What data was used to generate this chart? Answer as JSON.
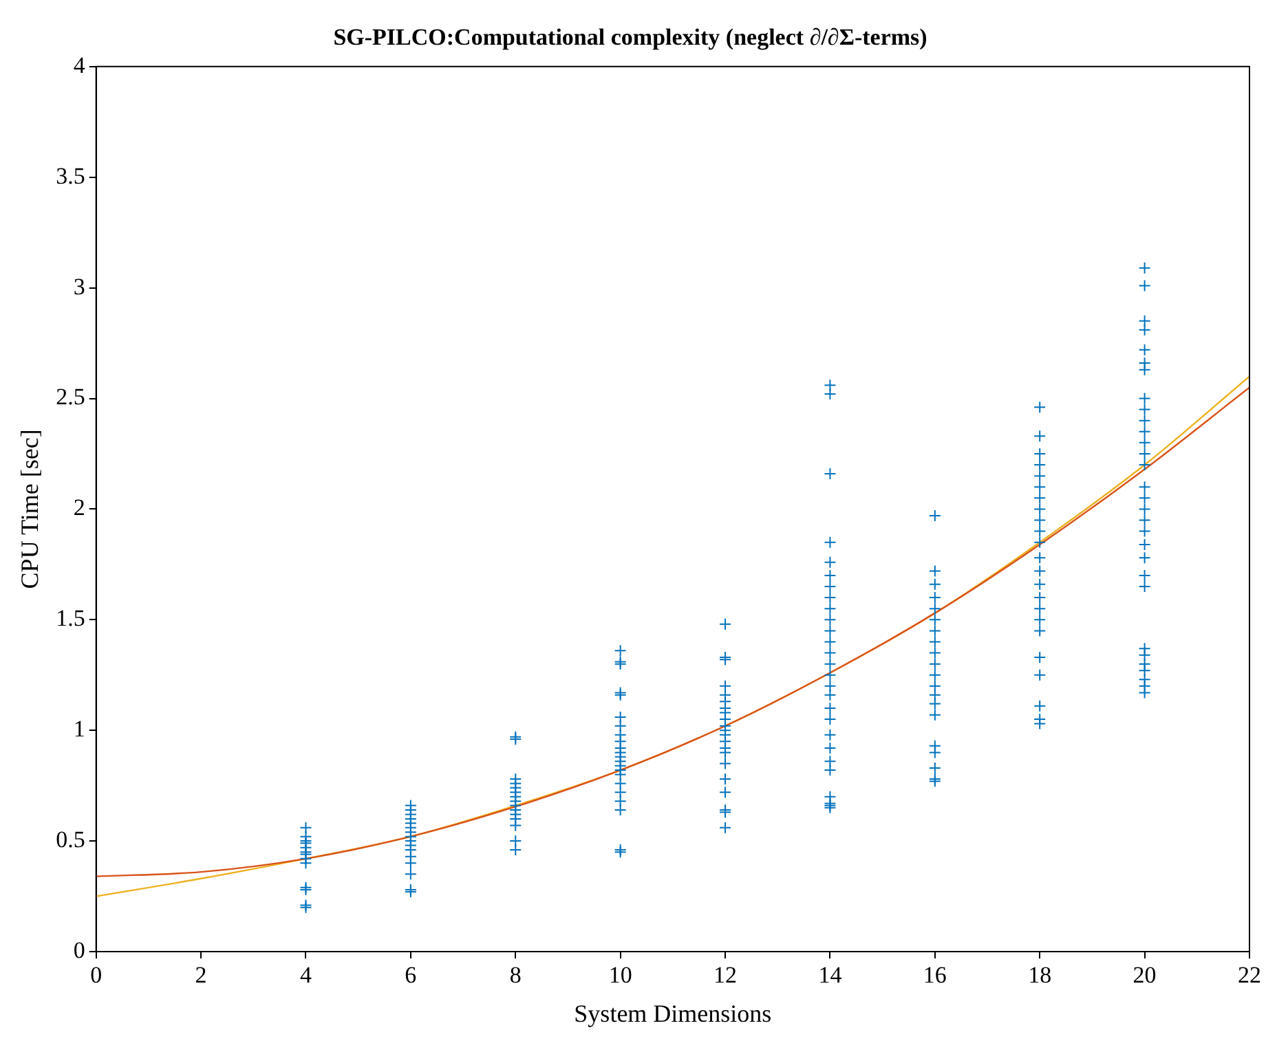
{
  "chart_data": {
    "type": "scatter",
    "title": "SG-PILCO:Computational complexity (neglect ∂/∂Σ-terms)",
    "xlabel": "System Dimensions",
    "ylabel": "CPU Time [sec]",
    "xlim": [
      0,
      22
    ],
    "xticks": [
      0,
      2,
      4,
      6,
      8,
      10,
      12,
      14,
      16,
      18,
      20,
      22
    ],
    "ylim": [
      0,
      4
    ],
    "yticks": [
      0,
      0.5,
      1,
      1.5,
      2,
      2.5,
      3,
      3.5,
      4
    ],
    "grid": false,
    "legend": false,
    "series": [
      {
        "marker": "cross",
        "color": "#0072bd",
        "x": [
          4,
          4,
          4,
          4,
          4,
          4,
          4,
          4,
          4,
          4,
          4,
          4,
          4,
          6,
          6,
          6,
          6,
          6,
          6,
          6,
          6,
          6,
          6,
          6,
          6,
          6,
          6,
          6,
          6,
          8,
          8,
          8,
          8,
          8,
          8,
          8,
          8,
          8,
          8,
          8,
          8,
          8,
          8,
          8,
          10,
          10,
          10,
          10,
          10,
          10,
          10,
          10,
          10,
          10,
          10,
          10,
          10,
          10,
          10,
          10,
          10,
          10,
          10,
          10,
          10,
          10,
          12,
          12,
          12,
          12,
          12,
          12,
          12,
          12,
          12,
          12,
          12,
          12,
          12,
          12,
          12,
          12,
          12,
          12,
          12,
          12,
          12,
          14,
          14,
          14,
          14,
          14,
          14,
          14,
          14,
          14,
          14,
          14,
          14,
          14,
          14,
          14,
          14,
          14,
          14,
          14,
          14,
          14,
          14,
          14,
          14,
          14,
          14,
          14,
          16,
          16,
          16,
          16,
          16,
          16,
          16,
          16,
          16,
          16,
          16,
          16,
          16,
          16,
          16,
          16,
          16,
          16,
          16,
          16,
          18,
          18,
          18,
          18,
          18,
          18,
          18,
          18,
          18,
          18,
          18,
          18,
          18,
          18,
          18,
          18,
          18,
          18,
          18,
          18,
          18,
          18,
          18,
          20,
          20,
          20,
          20,
          20,
          20,
          20,
          20,
          20,
          20,
          20,
          20,
          20,
          20,
          20,
          20,
          20,
          20,
          20,
          20,
          20,
          20,
          20,
          20,
          20,
          20,
          20,
          20,
          20,
          20
        ],
        "values": [
          0.2,
          0.21,
          0.28,
          0.29,
          0.4,
          0.42,
          0.44,
          0.45,
          0.47,
          0.49,
          0.5,
          0.52,
          0.56,
          0.27,
          0.28,
          0.35,
          0.4,
          0.43,
          0.46,
          0.48,
          0.5,
          0.52,
          0.54,
          0.56,
          0.58,
          0.6,
          0.62,
          0.64,
          0.66,
          0.46,
          0.5,
          0.57,
          0.6,
          0.62,
          0.64,
          0.66,
          0.68,
          0.7,
          0.72,
          0.74,
          0.76,
          0.78,
          0.96,
          0.97,
          0.45,
          0.46,
          0.64,
          0.68,
          0.72,
          0.76,
          0.8,
          0.82,
          0.84,
          0.86,
          0.88,
          0.9,
          0.92,
          0.95,
          0.98,
          1.02,
          1.06,
          1.16,
          1.17,
          1.3,
          1.31,
          1.36,
          0.56,
          0.63,
          0.64,
          0.72,
          0.78,
          0.85,
          0.9,
          0.92,
          0.95,
          0.98,
          1.0,
          1.02,
          1.05,
          1.08,
          1.1,
          1.13,
          1.16,
          1.2,
          1.32,
          1.33,
          1.48,
          0.65,
          0.66,
          0.67,
          0.7,
          0.82,
          0.86,
          0.92,
          0.98,
          1.05,
          1.1,
          1.16,
          1.2,
          1.25,
          1.3,
          1.35,
          1.4,
          1.45,
          1.5,
          1.55,
          1.6,
          1.65,
          1.7,
          1.76,
          1.85,
          2.16,
          2.52,
          2.56,
          0.77,
          0.78,
          0.83,
          0.9,
          0.93,
          1.07,
          1.12,
          1.16,
          1.2,
          1.25,
          1.3,
          1.35,
          1.4,
          1.45,
          1.5,
          1.55,
          1.6,
          1.66,
          1.72,
          1.97,
          1.03,
          1.05,
          1.11,
          1.25,
          1.33,
          1.45,
          1.5,
          1.55,
          1.6,
          1.66,
          1.72,
          1.78,
          1.85,
          1.9,
          1.95,
          2.0,
          2.05,
          2.1,
          2.15,
          2.2,
          2.25,
          2.33,
          2.46,
          1.17,
          1.2,
          1.23,
          1.27,
          1.3,
          1.34,
          1.37,
          1.65,
          1.7,
          1.78,
          1.84,
          1.9,
          1.95,
          2.0,
          2.05,
          2.1,
          2.2,
          2.25,
          2.3,
          2.35,
          2.4,
          2.45,
          2.5,
          2.63,
          2.66,
          2.72,
          2.81,
          2.85,
          3.01,
          3.09
        ]
      },
      {
        "type": "line",
        "marker": "none",
        "color": "#d95319",
        "line_style": "solid",
        "x": [
          0,
          2,
          4,
          6,
          8,
          10,
          12,
          14,
          16,
          18,
          20,
          22
        ],
        "values": [
          0.34,
          0.36,
          0.42,
          0.52,
          0.655,
          0.82,
          1.02,
          1.26,
          1.53,
          1.84,
          2.18,
          2.55
        ]
      },
      {
        "type": "line",
        "marker": "none",
        "color": "#edb120",
        "line_style": "solid",
        "x": [
          0,
          2,
          4,
          6,
          8,
          10,
          12,
          14,
          16,
          18,
          20,
          22
        ],
        "values": [
          0.25,
          0.33,
          0.42,
          0.52,
          0.66,
          0.82,
          1.02,
          1.26,
          1.53,
          1.85,
          2.2,
          2.6
        ]
      }
    ]
  }
}
